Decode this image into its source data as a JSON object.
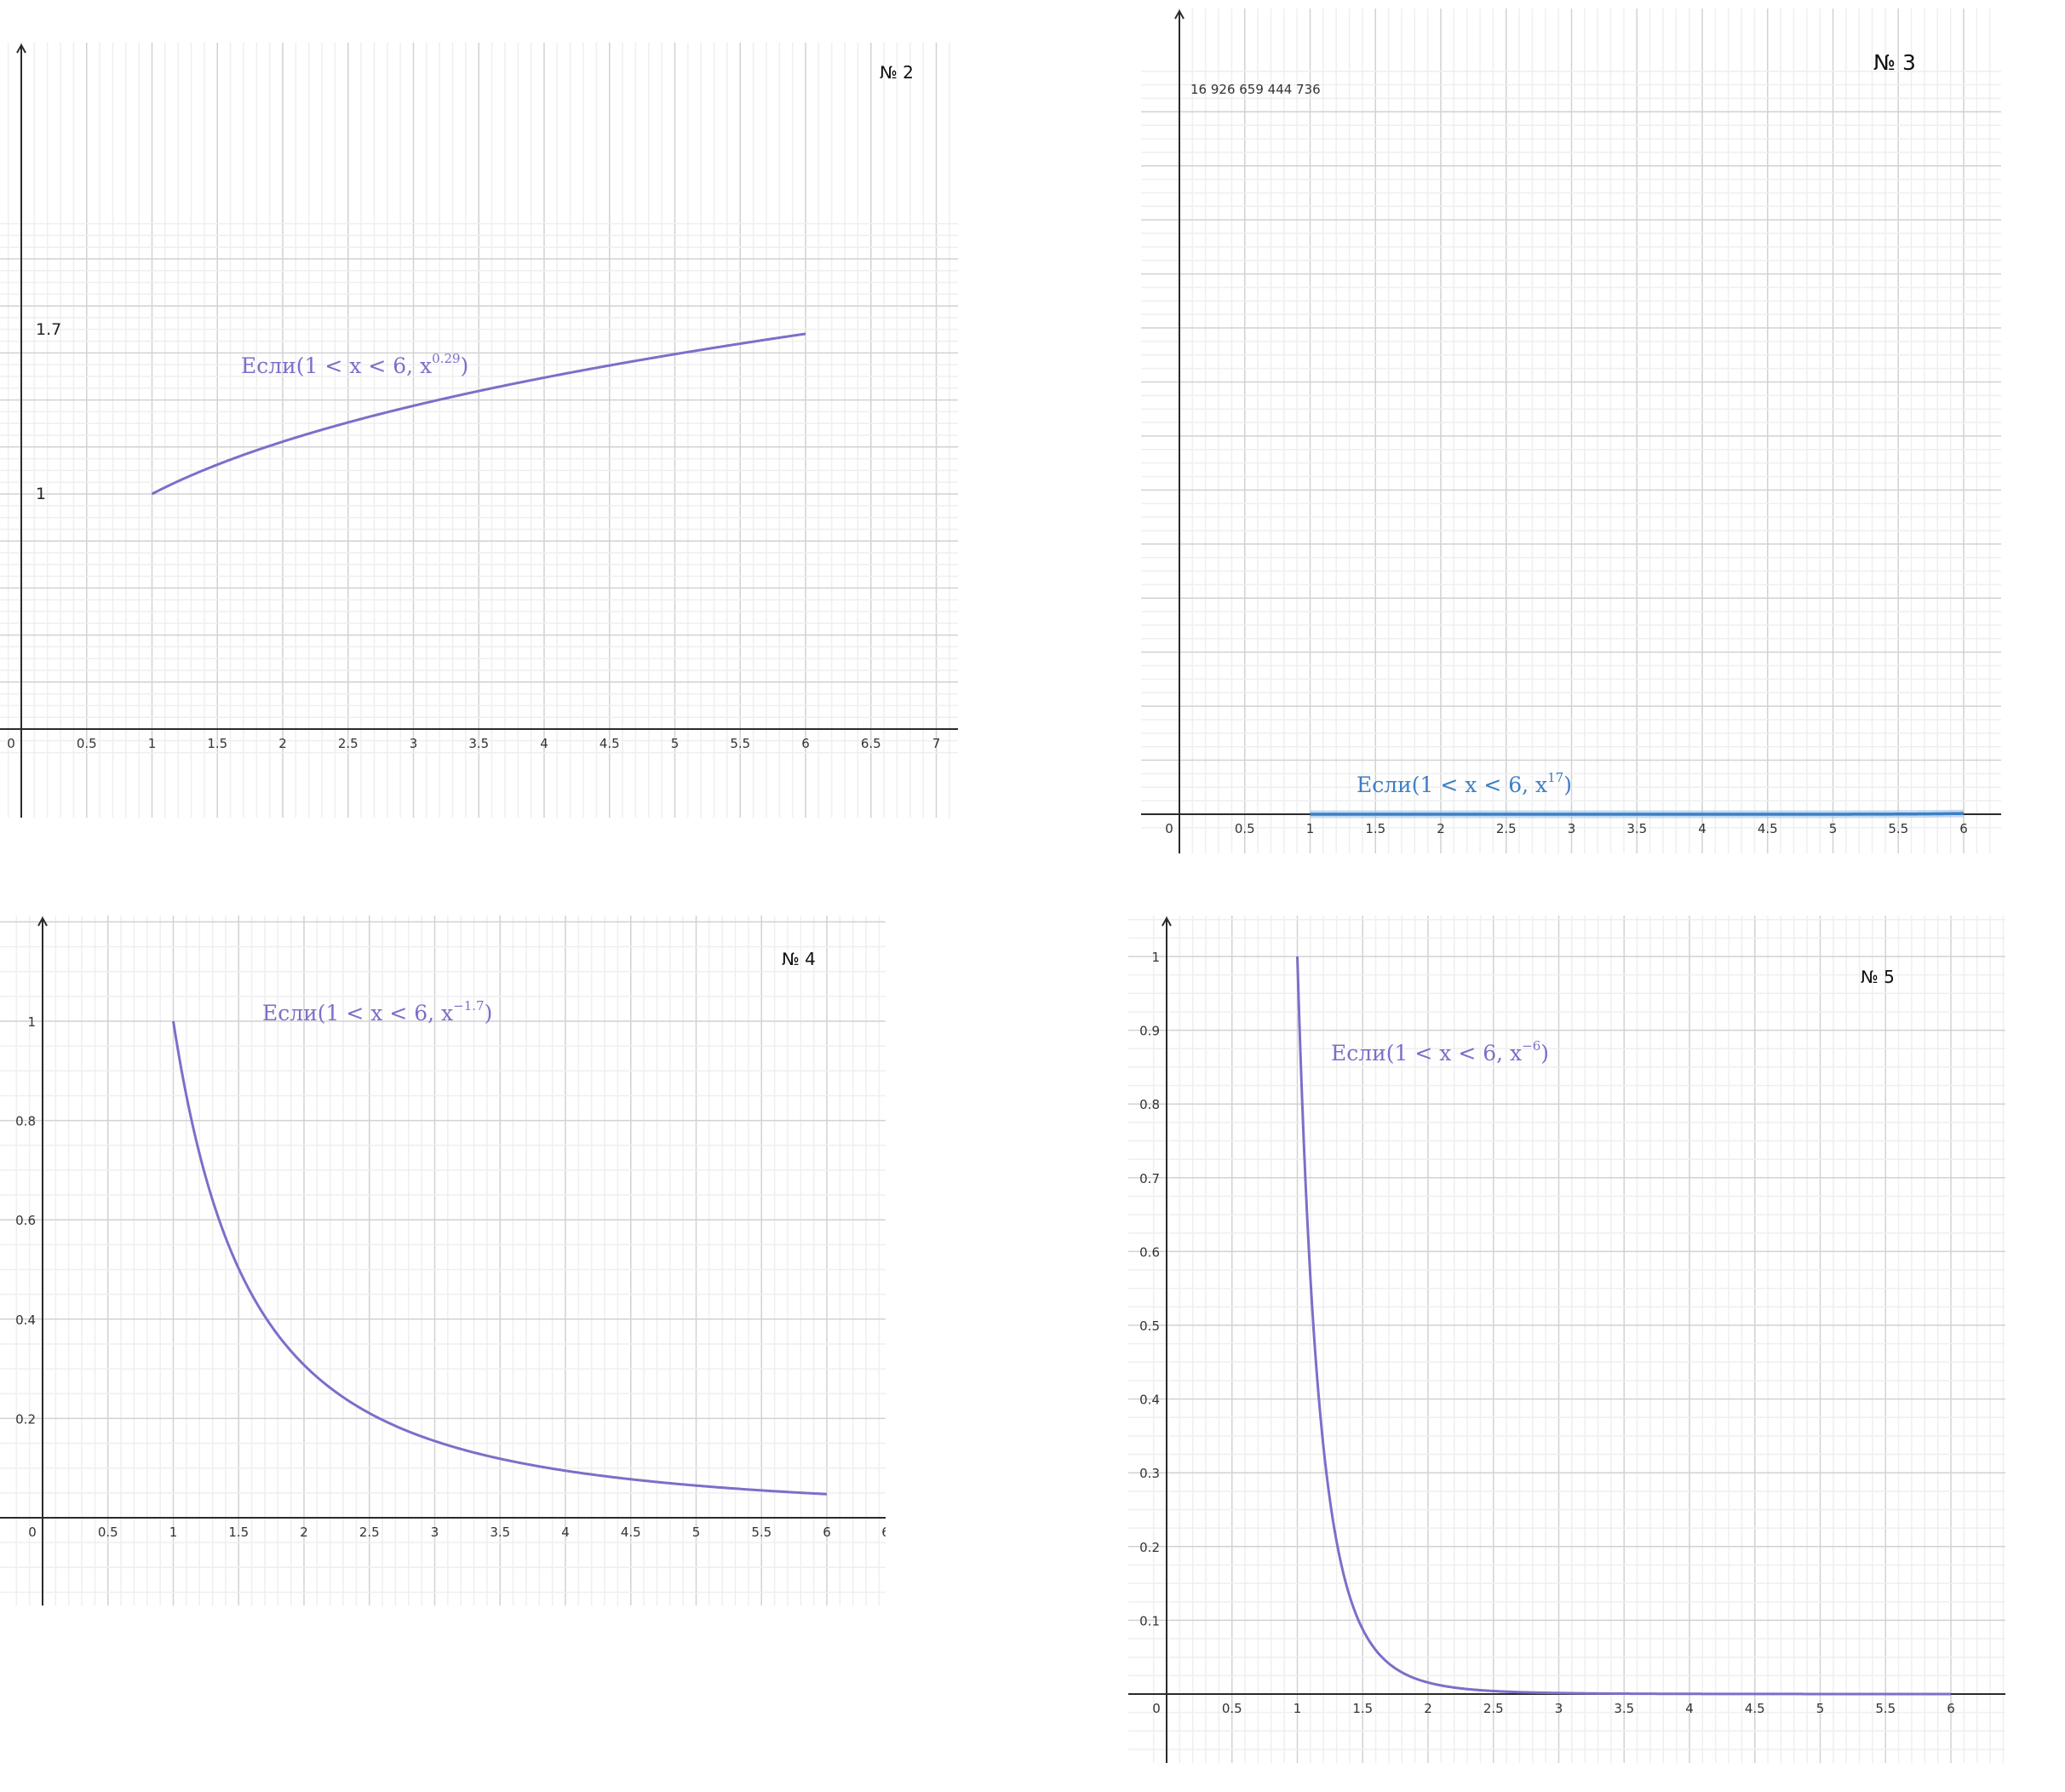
{
  "colors": {
    "curve_purple": "#7b6fc9",
    "curve_blue": "#3d7fc4",
    "grid_major": "#d2d2d2",
    "grid_minor": "#efefef",
    "axis": "#2b2b2b"
  },
  "chart_data": [
    {
      "id": "chart-2",
      "type": "line",
      "title": "№ 2",
      "x_tick_labels": [
        "0",
        "0.5",
        "1",
        "1.5",
        "2",
        "2.5",
        "3",
        "3.5",
        "4",
        "4.5",
        "5",
        "5.5",
        "6",
        "6.5",
        "7"
      ],
      "y_tick_labels": [
        "1",
        "1.7"
      ],
      "xlim": [
        -0.15,
        7.15
      ],
      "ylim": [
        -0.12,
        2.15
      ],
      "grid": true,
      "series": [
        {
          "function": "x^0.29",
          "domain": [
            1,
            6
          ],
          "color": "#7b6fc9"
        }
      ],
      "annotation": {
        "prefix": "Если",
        "expr": "(1 < x < 6, x",
        "exponent": "0.29",
        "suffix": ")"
      }
    },
    {
      "id": "chart-3",
      "type": "line",
      "title": "№ 3",
      "x_tick_labels": [
        "0",
        "0.5",
        "1",
        "1.5",
        "2",
        "2.5",
        "3",
        "3.5",
        "4",
        "4.5",
        "5",
        "5.5",
        "6"
      ],
      "y_tick_labels": [
        "16 926 659 444 736"
      ],
      "xlim": [
        -0.08,
        6.3
      ],
      "ylim": [
        -600000000000000.0,
        1.69e+16
      ],
      "grid": true,
      "series": [
        {
          "function": "x^17",
          "domain": [
            1,
            6
          ],
          "color": "#3d7fc4"
        }
      ],
      "annotation": {
        "prefix": "Если",
        "expr": "(1 < x < 6, x",
        "exponent": "17",
        "suffix": ")"
      }
    },
    {
      "id": "chart-4",
      "type": "line",
      "title": "№ 4",
      "x_tick_labels": [
        "0",
        "0.5",
        "1",
        "1.5",
        "2",
        "2.5",
        "3",
        "3.5",
        "4",
        "4.5",
        "5",
        "5.5",
        "6",
        "6"
      ],
      "y_tick_labels": [
        "0.2",
        "0.4",
        "0.6",
        "0.8",
        "1"
      ],
      "xlim": [
        -0.2,
        6.45
      ],
      "ylim": [
        -0.17,
        1.22
      ],
      "grid": true,
      "series": [
        {
          "function": "x^-1.7",
          "domain": [
            1,
            6
          ],
          "color": "#7b6fc9"
        }
      ],
      "annotation": {
        "prefix": "Если",
        "expr": "(1 < x < 6, x",
        "exponent": "−1.7",
        "suffix": ")"
      }
    },
    {
      "id": "chart-5",
      "type": "line",
      "title": "№ 5",
      "x_tick_labels": [
        "0",
        "0.5",
        "1",
        "1.5",
        "2",
        "2.5",
        "3",
        "3.5",
        "4",
        "4.5",
        "5",
        "5.5",
        "6"
      ],
      "y_tick_labels": [
        "0.1",
        "0.2",
        "0.3",
        "0.4",
        "0.5",
        "0.6",
        "0.7",
        "0.8",
        "0.9",
        "1"
      ],
      "xlim": [
        -0.13,
        6.4
      ],
      "ylim": [
        -0.08,
        1.05
      ],
      "grid": true,
      "series": [
        {
          "function": "x^-6",
          "domain": [
            1,
            6
          ],
          "color": "#7b6fc9"
        }
      ],
      "annotation": {
        "prefix": "Если",
        "expr": "(1 < x < 6, x",
        "exponent": "−6",
        "suffix": ")"
      }
    }
  ]
}
